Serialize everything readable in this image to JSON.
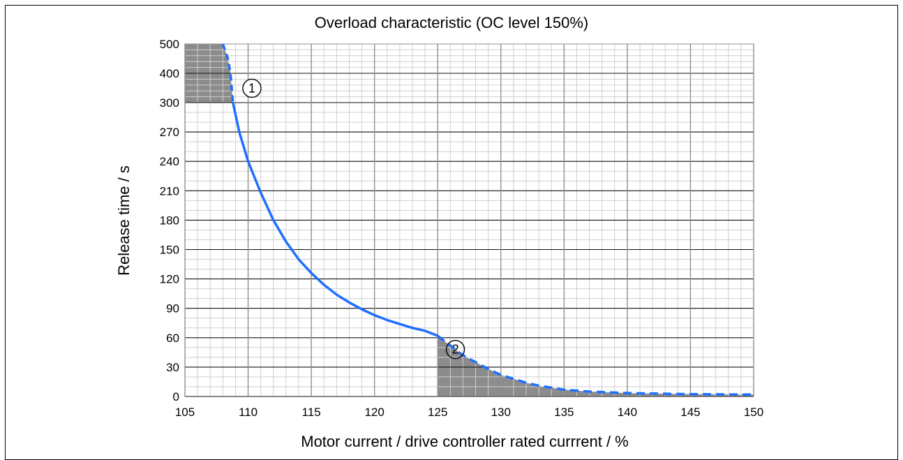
{
  "chart_data": {
    "type": "line",
    "title": "Overload characteristic (OC level 150%)",
    "xlabel": "Motor current / drive controller rated currrent / %",
    "ylabel": "Release time / s",
    "xlim": [
      105,
      150
    ],
    "x_ticks": [
      "105",
      "110",
      "115",
      "120",
      "125",
      "130",
      "135",
      "140",
      "145",
      "150"
    ],
    "y_ticks": [
      "0",
      "30",
      "60",
      "90",
      "120",
      "150",
      "180",
      "210",
      "240",
      "270",
      "300",
      "400",
      "500"
    ],
    "y_scale_note": "piecewise: 0–300 linear in steps of 30; 300–500 compressed",
    "grid": true,
    "series": [
      {
        "solid_segment": [
          [
            108.8,
            300
          ],
          [
            109.3,
            270
          ],
          [
            110,
            240
          ],
          [
            111,
            208
          ],
          [
            112,
            180
          ],
          [
            113,
            158
          ],
          [
            114,
            140
          ],
          [
            115,
            126
          ],
          [
            116,
            114
          ],
          [
            117,
            104
          ],
          [
            118,
            96
          ],
          [
            119,
            89
          ],
          [
            120,
            83
          ],
          [
            121,
            78
          ],
          [
            122,
            74
          ],
          [
            123,
            70
          ],
          [
            124,
            67
          ],
          [
            125,
            62
          ]
        ],
        "dashed_segment_1": [
          [
            108,
            500
          ],
          [
            108.4,
            450
          ],
          [
            108.6,
            400
          ],
          [
            108.8,
            300
          ]
        ],
        "dashed_segment_2": [
          [
            125,
            62
          ],
          [
            126,
            52
          ],
          [
            127,
            42
          ],
          [
            128,
            35
          ],
          [
            129,
            28
          ],
          [
            130,
            22
          ],
          [
            131,
            18
          ],
          [
            132,
            14
          ],
          [
            133,
            11
          ],
          [
            134,
            9
          ],
          [
            135,
            7
          ],
          [
            136,
            6
          ],
          [
            137,
            5
          ],
          [
            138,
            4.5
          ],
          [
            139,
            4
          ],
          [
            140,
            3.5
          ],
          [
            141,
            3.2
          ],
          [
            142,
            3
          ],
          [
            143,
            2.8
          ],
          [
            144,
            2.6
          ],
          [
            145,
            2.4
          ],
          [
            146,
            2.3
          ],
          [
            147,
            2.2
          ],
          [
            148,
            2.1
          ],
          [
            149,
            2
          ],
          [
            150,
            2
          ]
        ],
        "color": "#1F6FFF"
      }
    ],
    "shaded_regions": [
      {
        "label": "①",
        "x_range": [
          105,
          108.8
        ],
        "y_range": [
          300,
          500
        ]
      },
      {
        "label": "②",
        "x_range": [
          125,
          150
        ],
        "under_curve": true
      }
    ],
    "colors": {
      "curve": "#1F6FFF",
      "shade": "#8C8C8C",
      "grid": "#8F8F8F"
    }
  }
}
